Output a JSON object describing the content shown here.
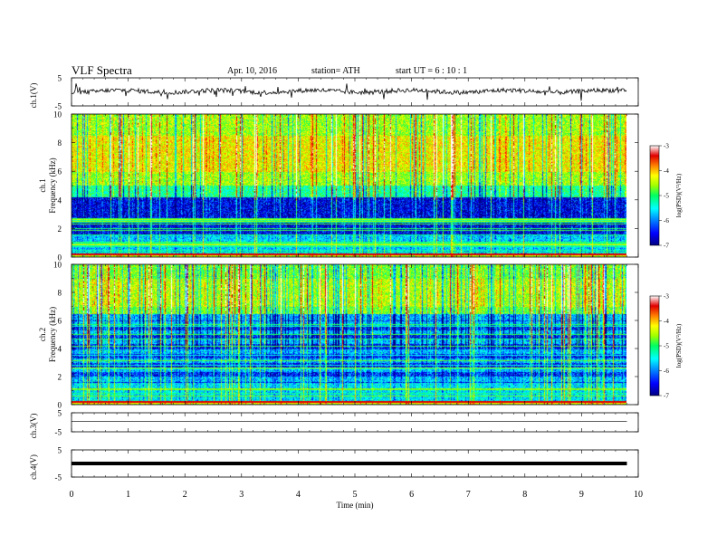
{
  "header": {
    "title": "VLF  Spectra",
    "date": "Apr. 10, 2016",
    "station": "station= ATH",
    "start_ut": "start  UT  =  6  : 10 : 1"
  },
  "chart_data": [
    {
      "type": "line",
      "name": "ch1-waveform",
      "ylabel": "ch.1(V)",
      "ylim": [
        -5,
        5
      ],
      "yticks": [
        "5",
        "-5"
      ],
      "xlim": [
        0,
        10
      ],
      "x_end": 9.8,
      "baseline": 0.2,
      "grid": false
    },
    {
      "type": "heatmap",
      "name": "ch1-spectrogram",
      "ylabel": "Frequency (kHz)",
      "ylabel2": "ch.1",
      "ylim": [
        0,
        10
      ],
      "yticks": [
        "0",
        "2",
        "4",
        "6",
        "8",
        "10"
      ],
      "xlim": [
        0,
        9.8
      ],
      "colorbar": {
        "label": "log(PSD)(V²/Hz)",
        "range": [
          -7,
          -3
        ],
        "ticks": [
          "-3",
          "-4",
          "-5",
          "-6",
          "-7"
        ]
      }
    },
    {
      "type": "heatmap",
      "name": "ch2-spectrogram",
      "ylabel": "Frequency (kHz)",
      "ylabel2": "ch.2",
      "ylim": [
        0,
        10
      ],
      "yticks": [
        "0",
        "2",
        "4",
        "6",
        "8",
        "10"
      ],
      "xlim": [
        0,
        9.8
      ],
      "colorbar": {
        "label": "log(PSD)(V²/Hz)",
        "range": [
          -7,
          -3
        ],
        "ticks": [
          "-3",
          "-4",
          "-5",
          "-6",
          "-7"
        ]
      }
    },
    {
      "type": "line",
      "name": "ch3-waveform",
      "ylabel": "ch.3(V)",
      "ylim": [
        -5,
        5
      ],
      "yticks": [
        "5",
        "-5"
      ],
      "xlim": [
        0,
        10
      ],
      "x_end": 9.8,
      "baseline": 0.5,
      "grid": false
    },
    {
      "type": "line",
      "name": "ch4-waveform",
      "ylabel": "ch.4(V)",
      "ylim": [
        -5,
        5
      ],
      "yticks": [
        "5",
        "-5"
      ],
      "xlim": [
        0,
        10
      ],
      "x_end": 9.8,
      "baseline": 0.0,
      "grid": false
    }
  ],
  "x_axis": {
    "label": "Time  (min)",
    "ticks": [
      "0",
      "1",
      "2",
      "3",
      "4",
      "5",
      "6",
      "7",
      "8",
      "9",
      "10"
    ]
  },
  "colors": {
    "background": "#ffffff",
    "axes": "#000000",
    "colormap": [
      "#000080",
      "#0000ff",
      "#00a0ff",
      "#00ffff",
      "#00ff80",
      "#80ff00",
      "#ffff00",
      "#ff8000",
      "#ff0000",
      "#c00000",
      "#ffffff"
    ]
  }
}
